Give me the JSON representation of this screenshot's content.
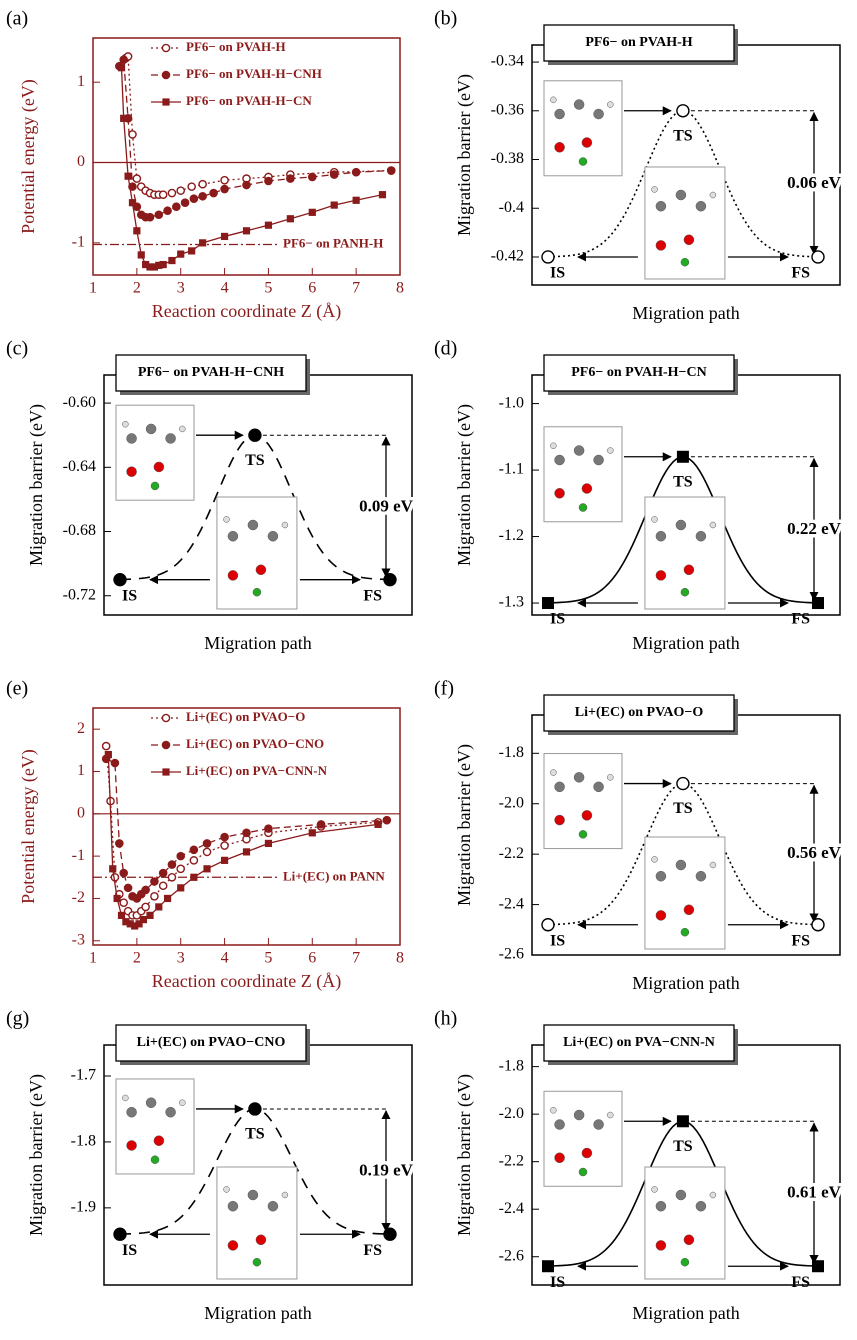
{
  "chart_data": [
    {
      "type": "line",
      "panel_label": "(a)",
      "xlabel": "Reaction coordinate Z (Å)",
      "ylabel": "Potential energy (eV)",
      "color": "#8b1a1a",
      "xlim": [
        1,
        8
      ],
      "xticks": [
        1,
        2,
        3,
        4,
        5,
        6,
        7,
        8
      ],
      "ylim": [
        -1.4,
        1.55
      ],
      "yticks": [
        -1,
        0,
        1
      ],
      "hlines": [
        {
          "value": 0,
          "style": "solid"
        },
        {
          "value": -1.02,
          "style": "dash-dot",
          "label": "PF6− on PANH-H"
        }
      ],
      "series": [
        {
          "name": "PF6− on PVAH-H",
          "marker": "open-circle",
          "line_style": "dotted",
          "x": [
            1.75,
            1.8,
            1.9,
            2.0,
            2.1,
            2.2,
            2.3,
            2.4,
            2.5,
            2.6,
            2.8,
            3.0,
            3.25,
            3.5,
            4.0,
            4.5,
            5.0,
            5.5,
            6.5,
            7.8
          ],
          "values": [
            1.3,
            1.32,
            0.35,
            -0.2,
            -0.3,
            -0.35,
            -0.38,
            -0.4,
            -0.4,
            -0.4,
            -0.38,
            -0.35,
            -0.3,
            -0.27,
            -0.22,
            -0.2,
            -0.18,
            -0.15,
            -0.12,
            -0.1
          ]
        },
        {
          "name": "PF6− on PVAH-H−CNH",
          "marker": "circle",
          "line_style": "dashed",
          "x": [
            1.6,
            1.7,
            1.8,
            1.9,
            2.0,
            2.1,
            2.2,
            2.3,
            2.5,
            2.7,
            2.9,
            3.1,
            3.3,
            3.5,
            3.75,
            4.0,
            4.5,
            5.0,
            5.5,
            6.0,
            6.5,
            7.0,
            7.8
          ],
          "values": [
            1.2,
            1.28,
            0.55,
            -0.3,
            -0.55,
            -0.65,
            -0.68,
            -0.68,
            -0.65,
            -0.6,
            -0.55,
            -0.5,
            -0.45,
            -0.42,
            -0.38,
            -0.33,
            -0.28,
            -0.23,
            -0.2,
            -0.18,
            -0.15,
            -0.12,
            -0.1
          ]
        },
        {
          "name": "PF6− on PVAH-H−CN",
          "marker": "square",
          "line_style": "solid",
          "x": [
            1.65,
            1.7,
            1.8,
            1.9,
            2.0,
            2.1,
            2.2,
            2.3,
            2.4,
            2.5,
            2.6,
            2.8,
            3.0,
            3.25,
            3.5,
            4.0,
            4.5,
            5.0,
            5.5,
            6.0,
            6.5,
            7.0,
            7.6
          ],
          "values": [
            1.18,
            0.55,
            -0.17,
            -0.5,
            -0.85,
            -1.15,
            -1.27,
            -1.3,
            -1.3,
            -1.28,
            -1.27,
            -1.22,
            -1.14,
            -1.1,
            -1.0,
            -0.92,
            -0.85,
            -0.78,
            -0.7,
            -0.62,
            -0.53,
            -0.47,
            -0.4
          ]
        }
      ]
    },
    {
      "type": "barrier",
      "panel_label": "(b)",
      "title": "PF6− on PVAH-H",
      "xlabel": "Migration path",
      "ylabel": "Migration barrier (eV)",
      "ylim": [
        -0.4315,
        -0.333
      ],
      "yticks": [
        -0.42,
        -0.4,
        -0.38,
        -0.36,
        -0.34
      ],
      "marker": "open-circle",
      "line_style": "dotted",
      "color": "#000000",
      "points": [
        {
          "label": "IS",
          "value": -0.42
        },
        {
          "label": "TS",
          "value": -0.36
        },
        {
          "label": "FS",
          "value": -0.42
        }
      ],
      "barrier": "0.06 eV"
    },
    {
      "type": "barrier",
      "panel_label": "(c)",
      "title": "PF6− on PVAH-H−CNH",
      "xlabel": "Migration path",
      "ylabel": "Migration barrier (eV)",
      "ylim": [
        -0.732,
        -0.5825
      ],
      "yticks": [
        -0.72,
        -0.68,
        -0.64,
        {
          "value": -0.6,
          "label": "-0.60"
        }
      ],
      "marker": "circle",
      "line_style": "long-dash",
      "color": "#000000",
      "points": [
        {
          "label": "IS",
          "value": -0.71
        },
        {
          "label": "TS",
          "value": -0.62
        },
        {
          "label": "FS",
          "value": -0.71
        }
      ],
      "barrier": "0.09 eV"
    },
    {
      "type": "barrier",
      "panel_label": "(d)",
      "title": "PF6− on PVAH-H−CN",
      "xlabel": "Migration path",
      "ylabel": "Migration barrier (eV)",
      "ylim": [
        -1.318,
        -0.957
      ],
      "yticks": [
        -1.3,
        -1.2,
        -1.1,
        {
          "value": -1.0,
          "label": "-1.0"
        }
      ],
      "marker": "square",
      "line_style": "solid",
      "color": "#000000",
      "points": [
        {
          "label": "IS",
          "value": -1.3
        },
        {
          "label": "TS",
          "value": -1.08
        },
        {
          "label": "FS",
          "value": -1.3
        }
      ],
      "barrier": "0.22 eV"
    },
    {
      "type": "line",
      "panel_label": "(e)",
      "xlabel": "Reaction coordinate Z (Å)",
      "ylabel": "Potential energy (eV)",
      "color": "#8b1a1a",
      "xlim": [
        1,
        8
      ],
      "xticks": [
        1,
        2,
        3,
        4,
        5,
        6,
        7,
        8
      ],
      "ylim": [
        -3.1,
        2.5
      ],
      "yticks": [
        -3,
        -2,
        -1,
        0,
        1,
        2
      ],
      "hlines": [
        {
          "value": 0,
          "style": "solid"
        },
        {
          "value": -1.5,
          "style": "dash-dot",
          "label": "Li+(EC) on PANN"
        }
      ],
      "series": [
        {
          "name": "Li+(EC) on PVAO−O",
          "marker": "open-circle",
          "line_style": "dotted",
          "x": [
            1.3,
            1.4,
            1.5,
            1.6,
            1.7,
            1.8,
            1.9,
            2.0,
            2.1,
            2.2,
            2.4,
            2.6,
            2.8,
            3.0,
            3.3,
            3.6,
            4.0,
            4.5,
            5.0,
            6.2,
            7.5
          ],
          "values": [
            1.6,
            0.3,
            -1.5,
            -1.9,
            -2.1,
            -2.3,
            -2.4,
            -2.4,
            -2.3,
            -2.2,
            -1.95,
            -1.7,
            -1.5,
            -1.3,
            -1.1,
            -0.9,
            -0.75,
            -0.6,
            -0.45,
            -0.3,
            -0.2
          ]
        },
        {
          "name": "Li+(EC) on PVAO−CNO",
          "marker": "circle",
          "line_style": "dashed",
          "x": [
            1.3,
            1.5,
            1.6,
            1.7,
            1.8,
            1.9,
            2.0,
            2.1,
            2.2,
            2.4,
            2.6,
            2.8,
            3.0,
            3.3,
            3.6,
            4.0,
            4.5,
            5.0,
            6.2,
            7.7
          ],
          "values": [
            1.3,
            1.2,
            -0.7,
            -1.4,
            -1.75,
            -1.95,
            -2.0,
            -1.9,
            -1.8,
            -1.6,
            -1.4,
            -1.2,
            -1.0,
            -0.85,
            -0.7,
            -0.55,
            -0.45,
            -0.35,
            -0.25,
            -0.15
          ]
        },
        {
          "name": "Li+(EC) on PVA−CNN-N",
          "marker": "square",
          "line_style": "solid",
          "x": [
            1.35,
            1.45,
            1.55,
            1.65,
            1.75,
            1.85,
            1.95,
            2.05,
            2.15,
            2.3,
            2.5,
            2.7,
            3.0,
            3.3,
            3.6,
            4.0,
            4.5,
            5.0,
            6.0,
            7.5
          ],
          "values": [
            1.4,
            -1.3,
            -2.0,
            -2.4,
            -2.55,
            -2.6,
            -2.65,
            -2.6,
            -2.5,
            -2.4,
            -2.2,
            -2.0,
            -1.75,
            -1.5,
            -1.3,
            -1.1,
            -0.9,
            -0.7,
            -0.45,
            -0.25
          ]
        }
      ]
    },
    {
      "type": "barrier",
      "panel_label": "(f)",
      "title": "Li+(EC) on PVAO−O",
      "xlabel": "Migration path",
      "ylabel": "Migration barrier (eV)",
      "ylim": [
        -2.6,
        -1.648
      ],
      "yticks": [
        -2.6,
        -2.4,
        -2.2,
        {
          "value": -2.0,
          "label": "-2.0"
        },
        -1.8
      ],
      "marker": "open-circle",
      "line_style": "dotted",
      "color": "#000000",
      "points": [
        {
          "label": "IS",
          "value": -2.48
        },
        {
          "label": "TS",
          "value": -1.92
        },
        {
          "label": "FS",
          "value": -2.48
        }
      ],
      "barrier": "0.56 eV"
    },
    {
      "type": "barrier",
      "panel_label": "(g)",
      "title": "Li+(EC) on PVAO−CNO",
      "xlabel": "Migration path",
      "ylabel": "Migration barrier (eV)",
      "ylim": [
        -2.017,
        -1.653
      ],
      "yticks": [
        -1.9,
        -1.8,
        -1.7
      ],
      "marker": "circle",
      "line_style": "long-dash",
      "color": "#000000",
      "points": [
        {
          "label": "IS",
          "value": -1.94
        },
        {
          "label": "TS",
          "value": -1.75
        },
        {
          "label": "FS",
          "value": -1.94
        }
      ],
      "barrier": "0.19 eV"
    },
    {
      "type": "barrier",
      "panel_label": "(h)",
      "title": "Li+(EC) on PVA−CNN-N",
      "xlabel": "Migration path",
      "ylabel": "Migration barrier (eV)",
      "ylim": [
        -2.719,
        -1.709
      ],
      "yticks": [
        -2.6,
        -2.4,
        -2.2,
        {
          "value": -2.0,
          "label": "-2.0"
        },
        -1.8
      ],
      "marker": "square",
      "line_style": "solid",
      "color": "#000000",
      "points": [
        {
          "label": "IS",
          "value": -2.64
        },
        {
          "label": "TS",
          "value": -2.03
        },
        {
          "label": "FS",
          "value": -2.64
        }
      ],
      "barrier": "0.61 eV"
    }
  ]
}
